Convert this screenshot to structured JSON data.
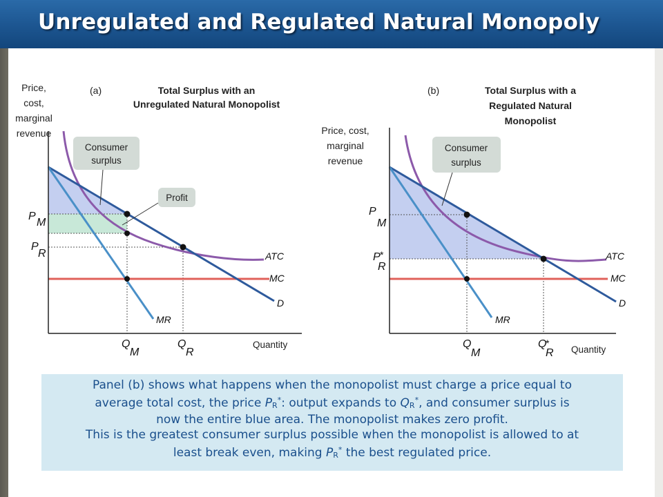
{
  "title": "Unregulated and Regulated Natural Monopoly",
  "panel_a": {
    "tag": "(a)",
    "title_line1": "Total Surplus with an",
    "title_line2": "Unregulated Natural Monopolist",
    "y_axis_line1": "Price,",
    "y_axis_line2": "cost,",
    "y_axis_line3": "marginal",
    "y_axis_line4": "revenue",
    "x_axis": "Quantity",
    "consumer_surplus_line1": "Consumer",
    "consumer_surplus_line2": "surplus",
    "profit": "Profit",
    "pm_main": "P",
    "pm_sub": "M",
    "pr_main": "P",
    "pr_sub": "R",
    "qm_main": "Q",
    "qm_sub": "M",
    "qr_main": "Q",
    "qr_sub": "R",
    "atc": "ATC",
    "mc": "MC",
    "d": "D",
    "mr": "MR"
  },
  "panel_b": {
    "tag": "(b)",
    "title_line1": "Total Surplus with a",
    "title_line2": "Regulated Natural",
    "title_line3": "Monopolist",
    "y_axis_line1": "Price, cost,",
    "y_axis_line2": "marginal",
    "y_axis_line3": "revenue",
    "x_axis": "Quantity",
    "consumer_surplus_line1": "Consumer",
    "consumer_surplus_line2": "surplus",
    "pm_main": "P",
    "pm_sub": "M",
    "pr_main": "P",
    "pr_star": "*",
    "pr_sub": "R",
    "qm_main": "Q",
    "qm_sub": "M",
    "qr_main": "Q",
    "qr_star": "*",
    "qr_sub": "R",
    "atc": "ATC",
    "mc": "MC",
    "d": "D",
    "mr": "MR"
  },
  "caption": {
    "l1_a": "Panel (b) shows what happens when the monopolist must charge a price equal to",
    "l2_a": "average total cost, the price ",
    "l2_p": "P",
    "l2_psub": "R",
    "l2_star": "*",
    "l2_b": ": output expands to ",
    "l2_q": "Q",
    "l2_qsub": "R",
    "l2_c": ", and consumer surplus is",
    "l3": "now the entire blue area. The monopolist makes zero profit.",
    "l4": "This is the greatest consumer surplus possible when the monopolist is allowed to at",
    "l5_a": "least break even, making ",
    "l5_p": "P",
    "l5_psub": "R",
    "l5_star": "*",
    "l5_b": " the best regulated price."
  },
  "colors": {
    "title_bar": "#1c5590",
    "demand": "#2e5a9c",
    "marginal_revenue": "#4a90c8",
    "atc": "#8c5aaa",
    "mc": "#e0605a",
    "consumer_surplus": "#c4cff0",
    "profit": "#c8e8d8",
    "caption_bg": "#d4e9f2",
    "caption_text": "#1a4f8c"
  }
}
